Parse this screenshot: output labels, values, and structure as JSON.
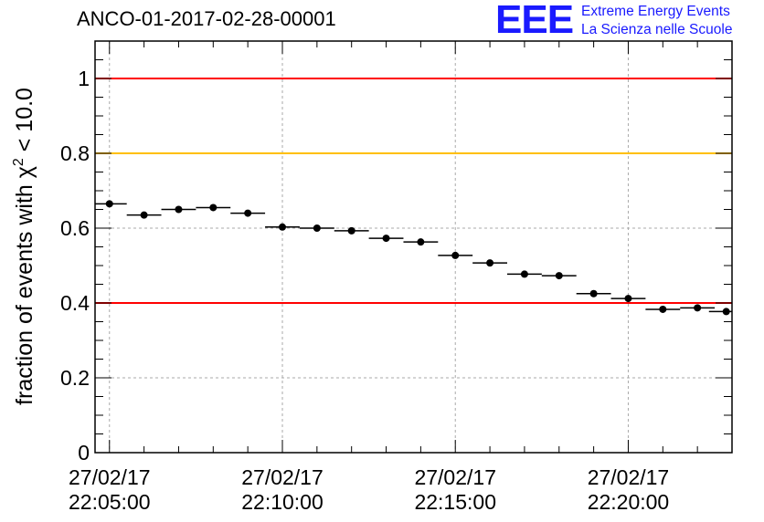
{
  "chart_data": {
    "type": "scatter",
    "title": "ANCO-01-2017-02-28-00001",
    "ylabel_main": "fraction of events with χ",
    "ylabel_sup": "2",
    "ylabel_tail": " < 10.0",
    "ylim": [
      0,
      1.1
    ],
    "yticks": [
      0,
      0.2,
      0.4,
      0.6,
      0.8,
      1
    ],
    "ytick_labels": [
      "0",
      "0.2",
      "0.4",
      "0.6",
      "0.8",
      "1"
    ],
    "xlim": [
      "22:04:35",
      "22:23:00"
    ],
    "xtick_values": [
      "22:05:00",
      "22:10:00",
      "22:15:00",
      "22:20:00"
    ],
    "xtick_labels": [
      {
        "date": "27/02/17",
        "time": "22:05:00"
      },
      {
        "date": "27/02/17",
        "time": "22:10:00"
      },
      {
        "date": "27/02/17",
        "time": "22:15:00"
      },
      {
        "date": "27/02/17",
        "time": "22:20:00"
      }
    ],
    "grid": true,
    "reference_lines": [
      {
        "y": 1.0,
        "color": "#ff0000"
      },
      {
        "y": 0.8,
        "color": "#ffbf00"
      },
      {
        "y": 0.4,
        "color": "#ff0000"
      }
    ],
    "bin_width_seconds": 60,
    "series": [
      {
        "marker_color": "#000000",
        "points": [
          {
            "x": "22:05:00",
            "y": 0.665
          },
          {
            "x": "22:06:00",
            "y": 0.635
          },
          {
            "x": "22:07:00",
            "y": 0.65
          },
          {
            "x": "22:08:00",
            "y": 0.655
          },
          {
            "x": "22:09:00",
            "y": 0.64
          },
          {
            "x": "22:10:00",
            "y": 0.603
          },
          {
            "x": "22:11:00",
            "y": 0.6
          },
          {
            "x": "22:12:00",
            "y": 0.593
          },
          {
            "x": "22:13:00",
            "y": 0.573
          },
          {
            "x": "22:14:00",
            "y": 0.563
          },
          {
            "x": "22:15:00",
            "y": 0.527
          },
          {
            "x": "22:16:00",
            "y": 0.507
          },
          {
            "x": "22:17:00",
            "y": 0.477
          },
          {
            "x": "22:18:00",
            "y": 0.473
          },
          {
            "x": "22:19:00",
            "y": 0.425
          },
          {
            "x": "22:20:00",
            "y": 0.412
          },
          {
            "x": "22:21:00",
            "y": 0.383
          },
          {
            "x": "22:22:00",
            "y": 0.387
          },
          {
            "x": "22:22:50",
            "y": 0.377
          }
        ]
      }
    ]
  },
  "logo": {
    "mark": "EEE",
    "line1": "Extreme Energy Events",
    "line2": "La Scienza nelle Scuole",
    "color": "#1a1aff"
  }
}
